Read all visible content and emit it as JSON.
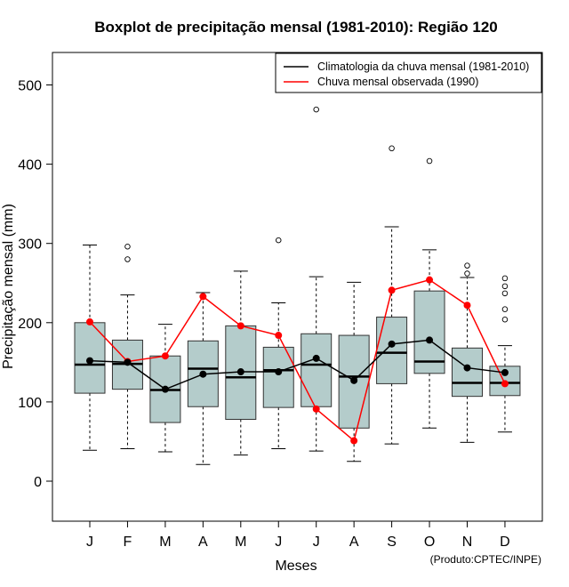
{
  "chart_data": {
    "type": "boxplot",
    "title": "Boxplot de precipitação mensal (1981-2010): Região 120",
    "xlabel": "Meses",
    "ylabel": "Precipitação mensal (mm)",
    "credit": "(Produto:CPTEC/INPE)",
    "ylim": [
      -50,
      550
    ],
    "yticks": [
      0,
      100,
      200,
      300,
      400,
      500
    ],
    "categories": [
      "J",
      "F",
      "M",
      "A",
      "M",
      "J",
      "J",
      "A",
      "S",
      "O",
      "N",
      "D"
    ],
    "boxes": [
      {
        "month": "J",
        "whisker_low": 39,
        "q1": 111,
        "median": 147,
        "q3": 200,
        "whisker_high": 298,
        "outliers": []
      },
      {
        "month": "F",
        "whisker_low": 41,
        "q1": 116,
        "median": 148,
        "q3": 178,
        "whisker_high": 235,
        "outliers": [
          280,
          296
        ]
      },
      {
        "month": "M",
        "whisker_low": 37,
        "q1": 74,
        "median": 115,
        "q3": 158,
        "whisker_high": 198,
        "outliers": []
      },
      {
        "month": "A",
        "whisker_low": 21,
        "q1": 94,
        "median": 142,
        "q3": 177,
        "whisker_high": 238,
        "outliers": []
      },
      {
        "month": "M",
        "whisker_low": 33,
        "q1": 78,
        "median": 131,
        "q3": 196,
        "whisker_high": 265,
        "outliers": []
      },
      {
        "month": "J",
        "whisker_low": 41,
        "q1": 93,
        "median": 140,
        "q3": 169,
        "whisker_high": 225,
        "outliers": [
          304
        ]
      },
      {
        "month": "J",
        "whisker_low": 38,
        "q1": 94,
        "median": 147,
        "q3": 186,
        "whisker_high": 258,
        "outliers": [
          469
        ]
      },
      {
        "month": "A",
        "whisker_low": 25,
        "q1": 67,
        "median": 132,
        "q3": 184,
        "whisker_high": 251,
        "outliers": []
      },
      {
        "month": "S",
        "whisker_low": 47,
        "q1": 123,
        "median": 162,
        "q3": 207,
        "whisker_high": 321,
        "outliers": [
          420
        ]
      },
      {
        "month": "O",
        "whisker_low": 67,
        "q1": 136,
        "median": 151,
        "q3": 240,
        "whisker_high": 292,
        "outliers": [
          404
        ]
      },
      {
        "month": "N",
        "whisker_low": 49,
        "q1": 107,
        "median": 124,
        "q3": 168,
        "whisker_high": 257,
        "outliers": [
          262,
          272
        ]
      },
      {
        "month": "D",
        "whisker_low": 62,
        "q1": 108,
        "median": 124,
        "q3": 145,
        "whisker_high": 171,
        "outliers": [
          204,
          217,
          237,
          246,
          256
        ]
      }
    ],
    "series": [
      {
        "name": "Climatologia da chuva mensal (1981-2010)",
        "color": "#000000",
        "values": [
          152,
          150,
          116,
          135,
          138,
          138,
          155,
          127,
          173,
          178,
          143,
          137
        ]
      },
      {
        "name": "Chuva mensal observada (1990)",
        "color": "#ff0000",
        "values": [
          201,
          151,
          158,
          233,
          196,
          184,
          91,
          51,
          241,
          254,
          222,
          123
        ]
      }
    ],
    "legend_position": "top-right",
    "box_fill": "#b4cccb"
  }
}
